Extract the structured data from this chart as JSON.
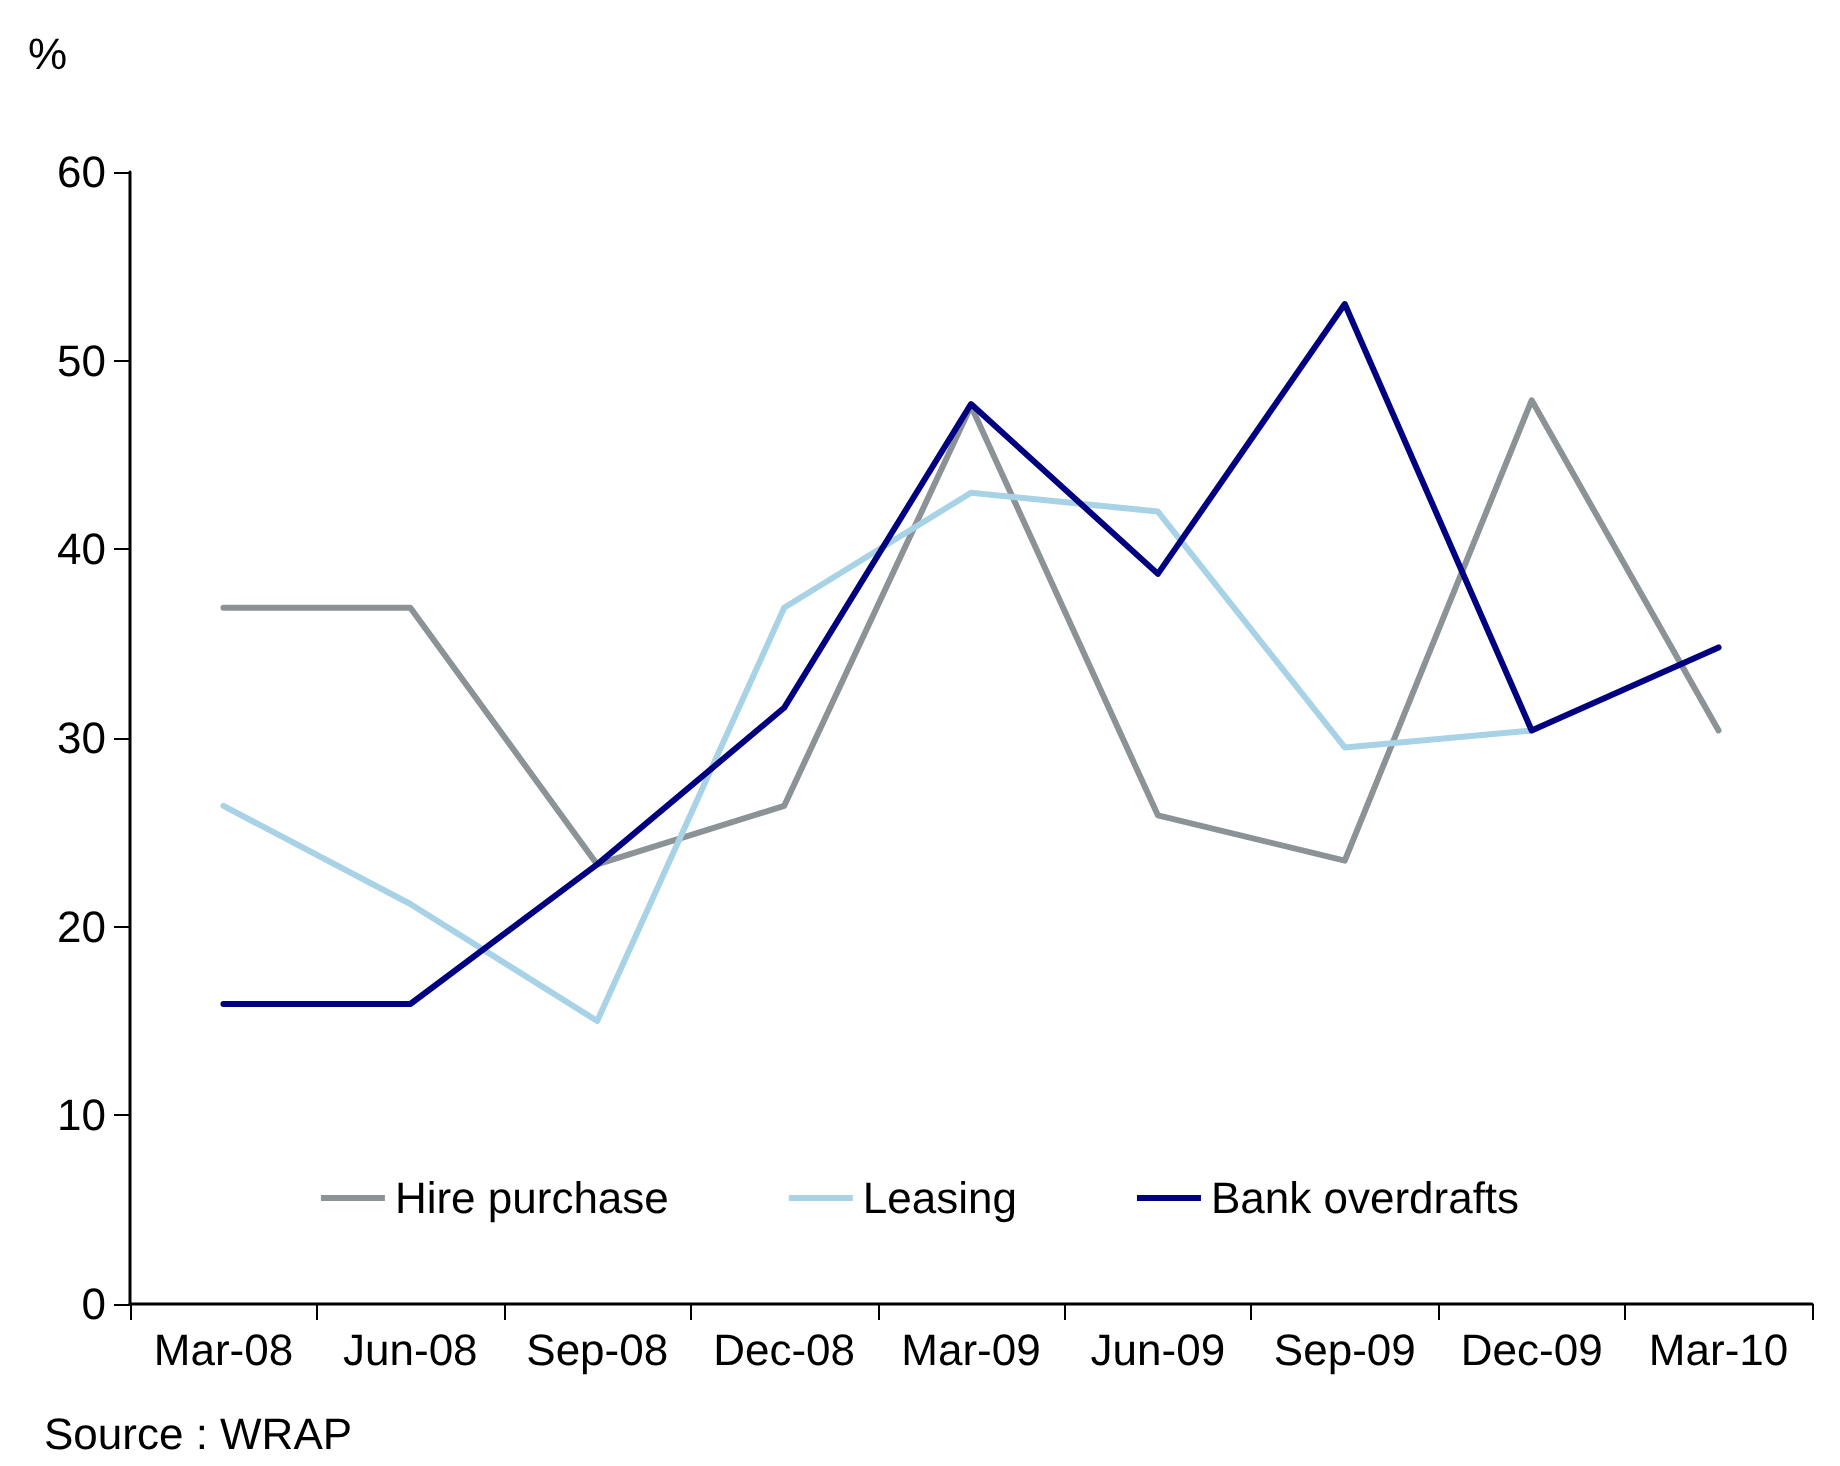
{
  "chart_data": {
    "type": "line",
    "ylabel": "%",
    "categories": [
      "Mar-08",
      "Jun-08",
      "Sep-08",
      "Dec-08",
      "Mar-09",
      "Jun-09",
      "Sep-09",
      "Dec-09",
      "Mar-10"
    ],
    "series": [
      {
        "name": "Hire purchase",
        "color": "#8c9396",
        "values": [
          36.9,
          36.9,
          23.3,
          26.4,
          47.6,
          25.9,
          23.5,
          47.9,
          30.4
        ]
      },
      {
        "name": "Leasing",
        "color": "#a8d2e6",
        "values": [
          26.4,
          21.2,
          15.0,
          36.9,
          43.0,
          42.0,
          29.5,
          30.4,
          null
        ]
      },
      {
        "name": "Bank overdrafts",
        "color": "#000080",
        "values": [
          15.9,
          15.9,
          23.3,
          31.6,
          47.7,
          38.7,
          53.0,
          30.4,
          34.8
        ]
      }
    ],
    "ylim": [
      0,
      60
    ],
    "yticks": [
      0,
      10,
      20,
      30,
      40,
      50,
      60
    ],
    "grid": false,
    "legend": "bottom",
    "marker": "none",
    "line_style": "solid",
    "annotations": [
      "Source : WRAP"
    ]
  }
}
